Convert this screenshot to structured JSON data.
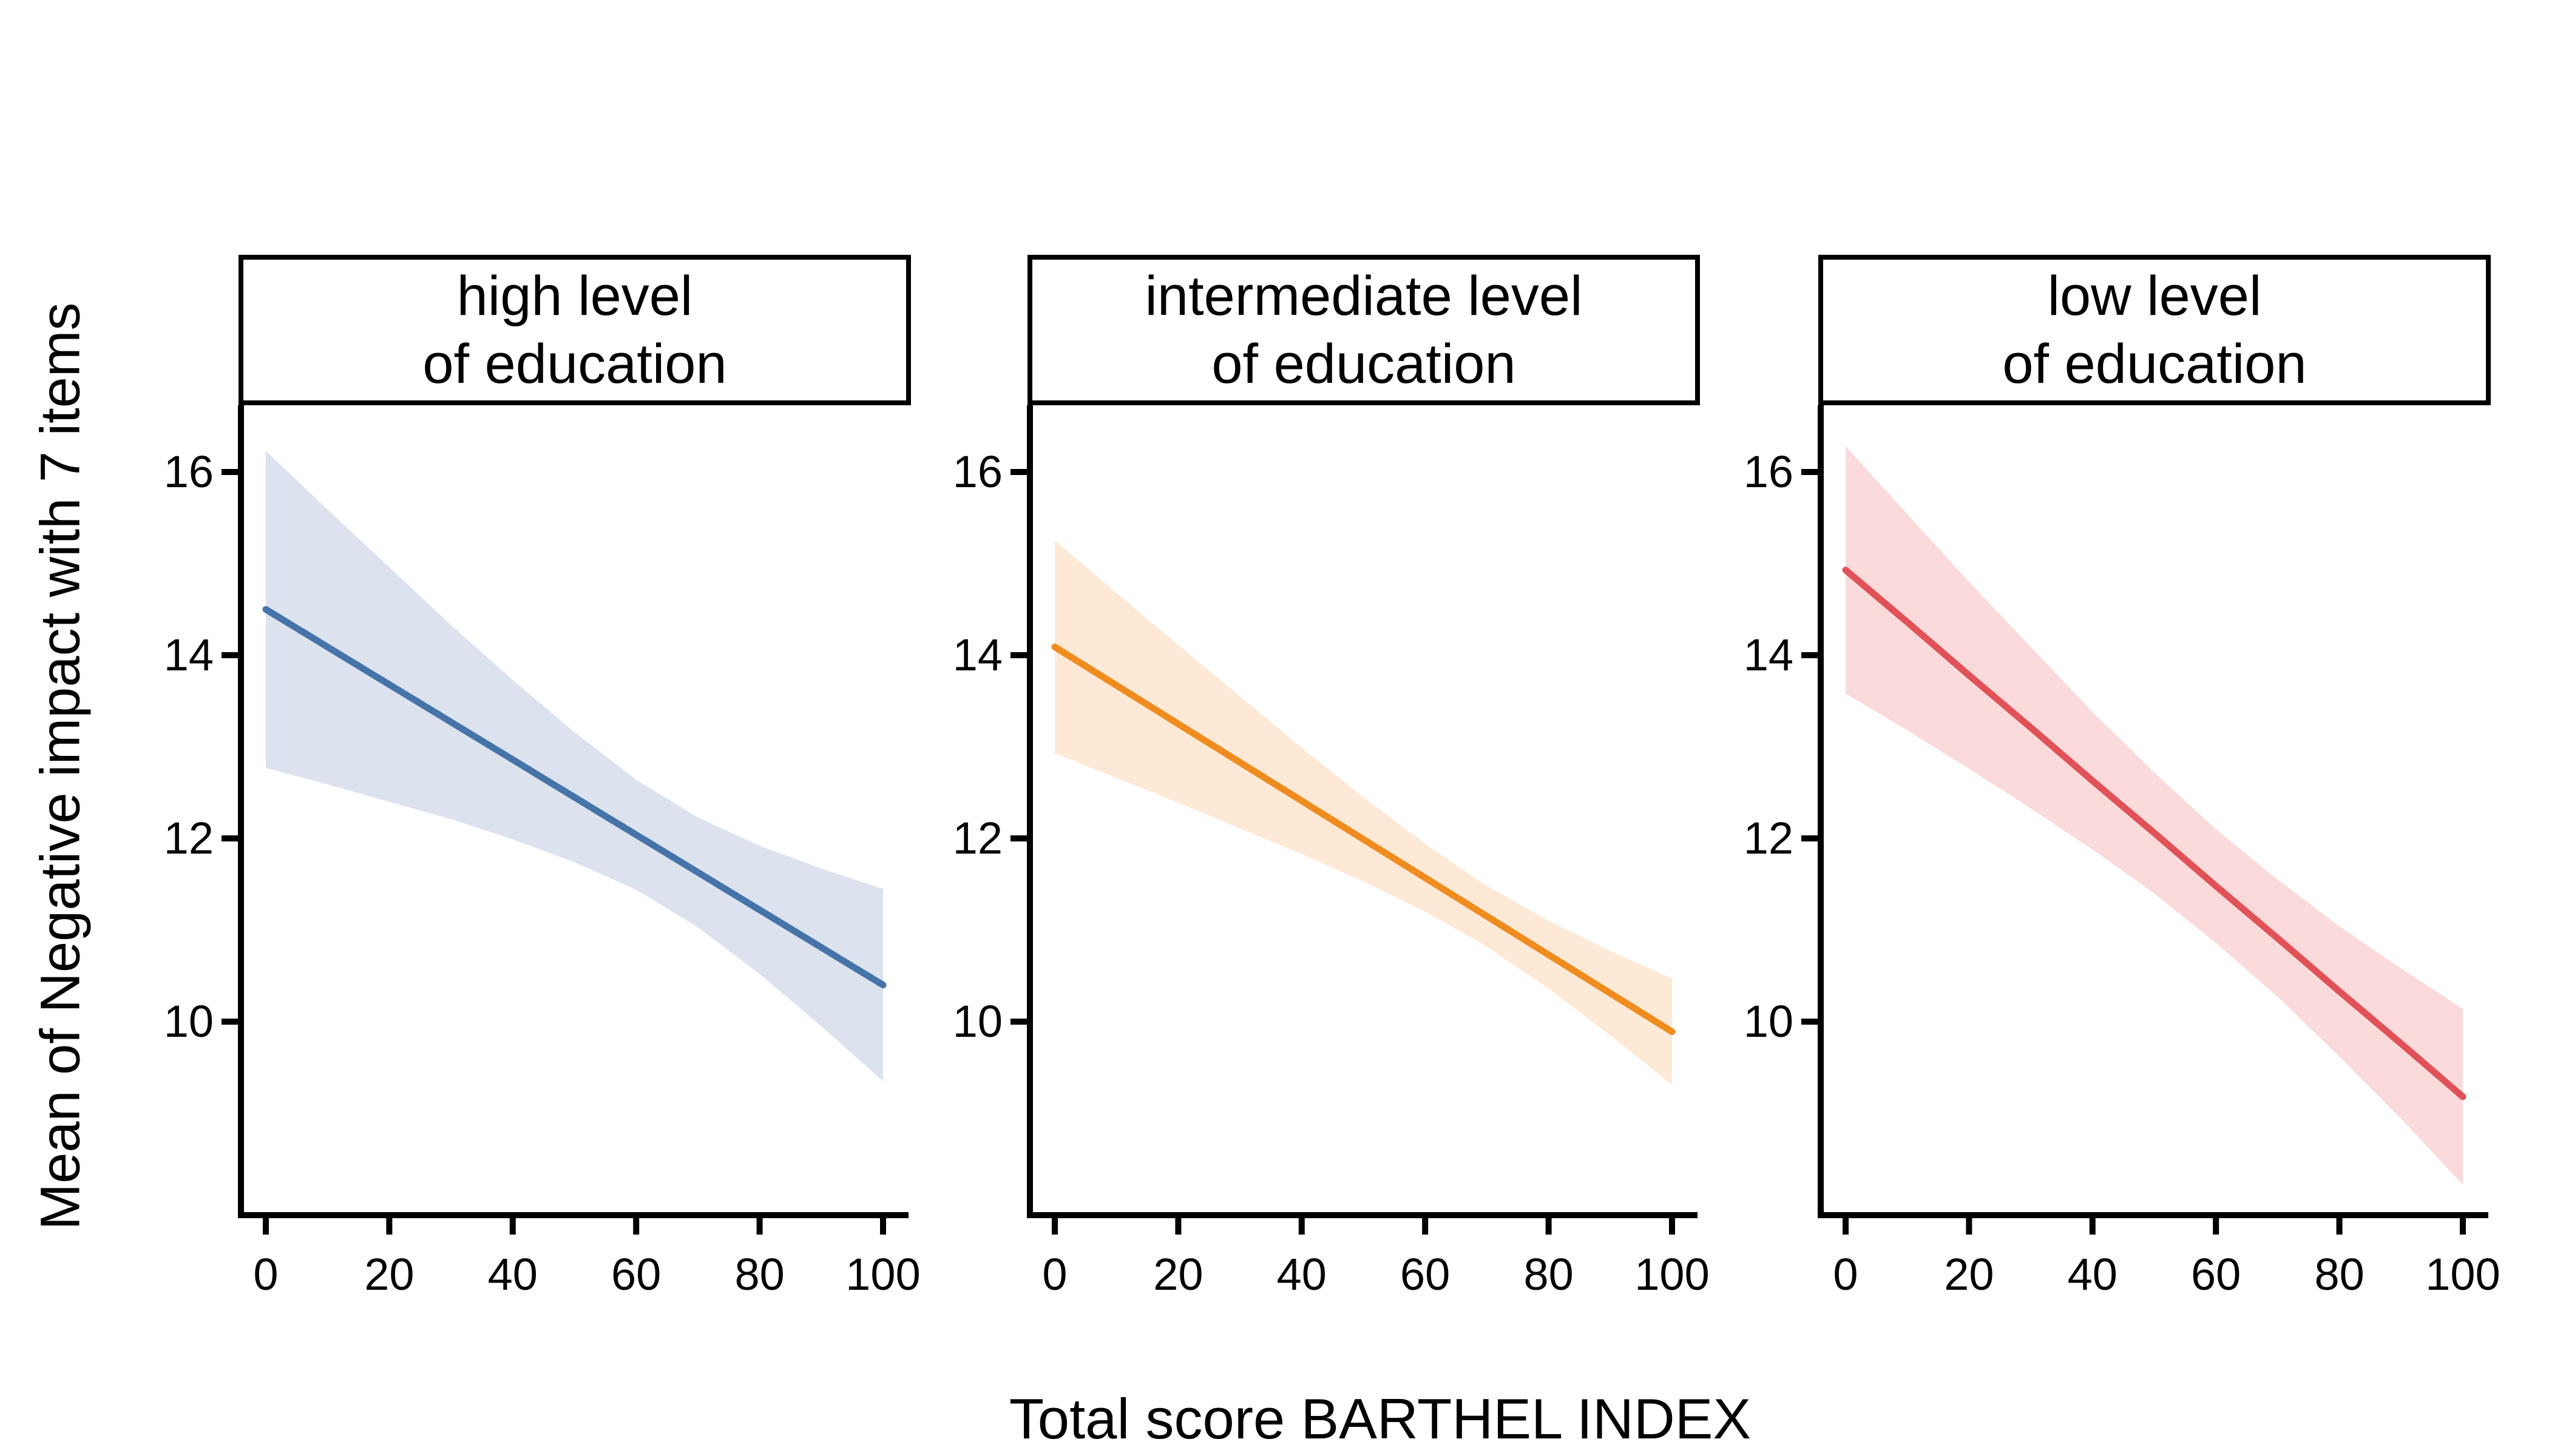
{
  "chart_data": {
    "type": "line",
    "title": "",
    "xlabel": "Total score BARTHEL INDEX",
    "ylabel": "Mean of Negative impact with 7 items",
    "x_ticks": [
      0,
      20,
      40,
      60,
      80,
      100
    ],
    "y_ticks": [
      16,
      14,
      12,
      10
    ],
    "xlim": [
      -4,
      104
    ],
    "ylim": [
      7.9,
      16.73
    ],
    "grid": "off",
    "legend": "none",
    "x": [
      0,
      10,
      20,
      30,
      40,
      50,
      60,
      70,
      80,
      90,
      100
    ],
    "panels": [
      {
        "facet": "high level\nof education",
        "line_color": "#4673a8",
        "band_color": "#dce3ee",
        "line": [
          14.5,
          14.09,
          13.68,
          13.27,
          12.86,
          12.45,
          12.04,
          11.63,
          11.22,
          10.81,
          10.4
        ],
        "ci_upper": [
          16.23,
          15.59,
          14.96,
          14.33,
          13.73,
          13.16,
          12.64,
          12.23,
          11.92,
          11.67,
          11.45
        ],
        "ci_lower": [
          12.77,
          12.59,
          12.4,
          12.21,
          11.99,
          11.74,
          11.44,
          11.03,
          10.52,
          9.95,
          9.35
        ]
      },
      {
        "facet": "intermediate level\nof education",
        "line_color": "#ef8c20",
        "band_color": "#fde9d5",
        "line": [
          14.09,
          13.67,
          13.25,
          12.83,
          12.41,
          11.99,
          11.57,
          11.15,
          10.73,
          10.31,
          9.89
        ],
        "ci_upper": [
          15.25,
          14.68,
          14.11,
          13.55,
          12.99,
          12.45,
          11.94,
          11.48,
          11.1,
          10.77,
          10.47
        ],
        "ci_lower": [
          12.93,
          12.66,
          12.39,
          12.11,
          11.83,
          11.53,
          11.2,
          10.82,
          10.36,
          9.85,
          9.31
        ]
      },
      {
        "facet": "low level\nof education",
        "line_color": "#e05257",
        "band_color": "#fadadb",
        "line": [
          14.93,
          14.36,
          13.78,
          13.21,
          12.63,
          12.06,
          11.48,
          10.91,
          10.33,
          9.76,
          9.18
        ],
        "ci_upper": [
          16.28,
          15.54,
          14.8,
          14.09,
          13.38,
          12.72,
          12.1,
          11.55,
          11.04,
          10.58,
          10.14
        ],
        "ci_lower": [
          13.58,
          13.18,
          12.76,
          12.33,
          11.88,
          11.4,
          10.86,
          10.27,
          9.62,
          8.94,
          8.22
        ]
      }
    ],
    "axis_color": "#000000",
    "background": "#ffffff"
  }
}
